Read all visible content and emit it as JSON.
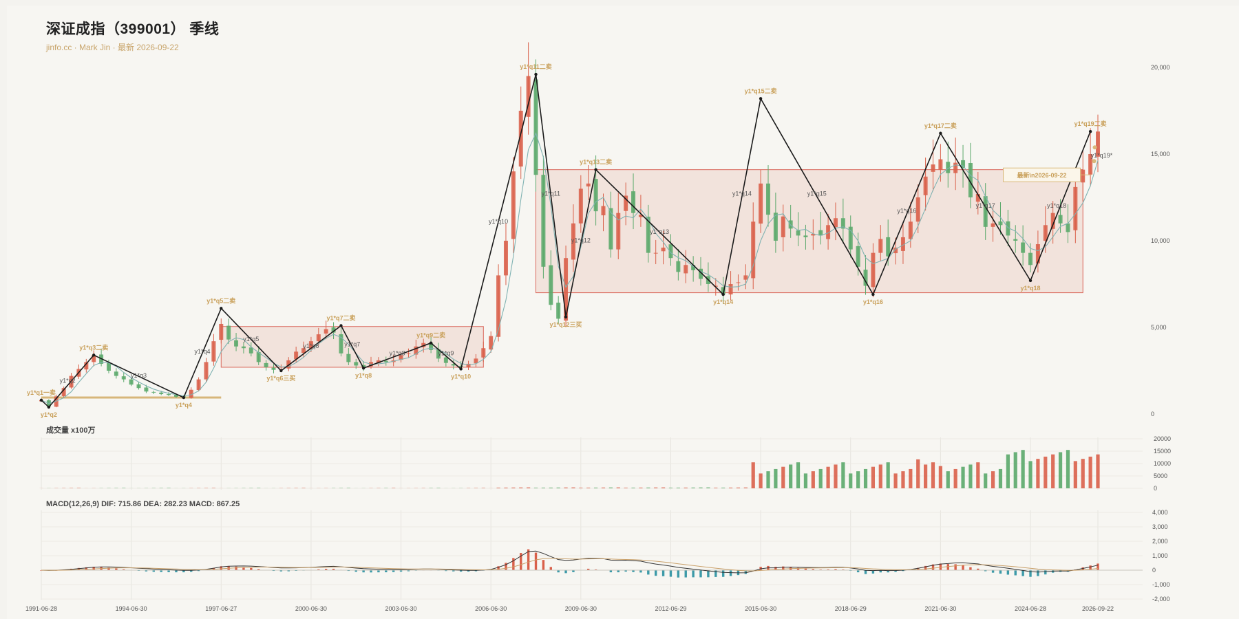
{
  "header": {
    "title": "深证成指（399001） 季线",
    "subtitle": "jinfo.cc · Mark Jin · 最新 2026-09-22"
  },
  "chart_data": {
    "type": "candlestick",
    "price_axis": {
      "ticks": [
        0,
        5000,
        10000,
        15000,
        20000
      ],
      "tick_labels": [
        "0",
        "5,000",
        "10,000",
        "15,000",
        "20,000"
      ],
      "ylim": [
        0,
        20000
      ]
    },
    "volume_panel": {
      "title": "成交量 x100万",
      "ticks": [
        0,
        5000,
        10000,
        15000,
        20000
      ],
      "tick_labels": [
        "0",
        "5000",
        "10000",
        "15000",
        "20000"
      ]
    },
    "macd_panel": {
      "title": "MACD(12,26,9) DIF: 715.86 DEA: 282.23 MACD: 867.25",
      "ticks": [
        -2000,
        -1000,
        0,
        1000,
        2000,
        3000,
        4000
      ],
      "tick_labels": [
        "-2,000",
        "-1,000",
        "0",
        "1,000",
        "2,000",
        "3,000",
        "4,000"
      ]
    },
    "x_tick_labels": [
      "1991-06-28",
      "1994-06-30",
      "1997-06-27",
      "2000-06-30",
      "2003-06-30",
      "2006-06-30",
      "2009-06-30",
      "2012-06-29",
      "2015-06-30",
      "2018-06-29",
      "2021-06-30",
      "2024-06-28",
      "2026-09-22"
    ],
    "x_tick_quarter_index": [
      0,
      12,
      24,
      36,
      48,
      60,
      72,
      84,
      96,
      108,
      120,
      132,
      141
    ],
    "pivots": [
      {
        "q": 0,
        "price": 800,
        "label": "y1*q1一卖",
        "gold": true,
        "pos": "above"
      },
      {
        "q": 1,
        "price": 400,
        "label": "y1*q2",
        "gold": true,
        "pos": "below"
      },
      {
        "q": 7,
        "price": 3400,
        "label": "y1*q3二卖",
        "gold": true,
        "pos": "above"
      },
      {
        "q": 19,
        "price": 950,
        "label": "y1*q4",
        "gold": true,
        "pos": "below"
      },
      {
        "q": 24,
        "price": 6100,
        "label": "y1*q5二卖",
        "gold": true,
        "pos": "above"
      },
      {
        "q": 32,
        "price": 2500,
        "label": "y1*q6三买",
        "gold": true,
        "pos": "below"
      },
      {
        "q": 40,
        "price": 5100,
        "label": "y1*q7二卖",
        "gold": true,
        "pos": "above"
      },
      {
        "q": 43,
        "price": 2650,
        "label": "y1*q8",
        "gold": true,
        "pos": "below"
      },
      {
        "q": 52,
        "price": 4100,
        "label": "y1*q9二卖",
        "gold": true,
        "pos": "above"
      },
      {
        "q": 56,
        "price": 2600,
        "label": "y1*q10",
        "gold": true,
        "pos": "below"
      },
      {
        "q": 66,
        "price": 19600,
        "label": "y1*q11二卖",
        "gold": true,
        "pos": "above"
      },
      {
        "q": 70,
        "price": 5600,
        "label": "y1*q12三买",
        "gold": true,
        "pos": "below"
      },
      {
        "q": 74,
        "price": 14100,
        "label": "y1*q13二卖",
        "gold": true,
        "pos": "above"
      },
      {
        "q": 91,
        "price": 6900,
        "label": "y1*q14",
        "gold": true,
        "pos": "below"
      },
      {
        "q": 96,
        "price": 18200,
        "label": "y1*q15二卖",
        "gold": true,
        "pos": "above"
      },
      {
        "q": 111,
        "price": 6900,
        "label": "y1*q16",
        "gold": true,
        "pos": "below"
      },
      {
        "q": 120,
        "price": 16200,
        "label": "y1*q17二卖",
        "gold": true,
        "pos": "above"
      },
      {
        "q": 132,
        "price": 7700,
        "label": "y1*q18",
        "gold": true,
        "pos": "below"
      },
      {
        "q": 140,
        "price": 16300,
        "label": "y1*q19二卖",
        "gold": true,
        "pos": "above"
      }
    ],
    "segment_labels": [
      {
        "q": 3.5,
        "price": 1800,
        "label": "y1*q2"
      },
      {
        "q": 13,
        "price": 2100,
        "label": "y1*q3"
      },
      {
        "q": 21.5,
        "price": 3500,
        "label": "y1*q4"
      },
      {
        "q": 28,
        "price": 4200,
        "label": "y1*q5"
      },
      {
        "q": 36,
        "price": 3800,
        "label": "y1*q6"
      },
      {
        "q": 41.5,
        "price": 3900,
        "label": "y1*q7"
      },
      {
        "q": 47.5,
        "price": 3400,
        "label": "y1*q8"
      },
      {
        "q": 54,
        "price": 3400,
        "label": "y1*q9"
      },
      {
        "q": 61,
        "price": 11000,
        "label": "y1*q10"
      },
      {
        "q": 68,
        "price": 12600,
        "label": "y1*q11"
      },
      {
        "q": 72,
        "price": 9900,
        "label": "y1*q12"
      },
      {
        "q": 82.5,
        "price": 10400,
        "label": "y1*q13"
      },
      {
        "q": 93.5,
        "price": 12600,
        "label": "y1*q14"
      },
      {
        "q": 103.5,
        "price": 12600,
        "label": "y1*q15"
      },
      {
        "q": 115.5,
        "price": 11600,
        "label": "y1*q16"
      },
      {
        "q": 126,
        "price": 11900,
        "label": "y1*q17"
      },
      {
        "q": 135.5,
        "price": 11900,
        "label": "y1*q18"
      },
      {
        "q": 141.5,
        "price": 14800,
        "label": "y1*q19*"
      }
    ],
    "zones": [
      {
        "q0": 24,
        "q1": 59,
        "low": 2700,
        "high": 5050
      },
      {
        "q0": 66,
        "q1": 139,
        "low": 7000,
        "high": 14100
      }
    ],
    "support_line": {
      "q0": 0,
      "q1": 24,
      "price": 950
    },
    "latest_marker": {
      "q": 140.5,
      "price": 13800,
      "label": "最新\\n2026-09-22"
    },
    "closes": [
      800,
      420,
      1020,
      1500,
      2200,
      2600,
      3000,
      3400,
      2900,
      2500,
      2200,
      2000,
      1700,
      1500,
      1300,
      1250,
      1150,
      1100,
      1000,
      950,
      1400,
      2000,
      3000,
      4200,
      5200,
      4300,
      3900,
      3800,
      3500,
      3000,
      2700,
      2550,
      2600,
      3100,
      3600,
      3800,
      4200,
      4600,
      4900,
      4700,
      3500,
      3000,
      2800,
      2700,
      3000,
      3100,
      3000,
      3100,
      3400,
      3500,
      3900,
      4100,
      3700,
      3200,
      2950,
      2800,
      2700,
      2900,
      3200,
      3800,
      4500,
      8000,
      10000,
      14000,
      17500,
      19500,
      13800,
      8500,
      6300,
      5500,
      9000,
      11000,
      13000,
      13300,
      11700,
      12000,
      9500,
      11600,
      12600,
      11600,
      11500,
      9300,
      9300,
      9600,
      9000,
      8200,
      8600,
      8300,
      7800,
      7500,
      7400,
      6900,
      7500,
      7600,
      8000,
      11100,
      13300,
      11500,
      10000,
      11400,
      10700,
      10300,
      10200,
      10400,
      10300,
      10900,
      11300,
      10700,
      9500,
      8500,
      7400,
      9300,
      10100,
      9100,
      9600,
      10200,
      11100,
      12500,
      13700,
      14400,
      14700,
      13900,
      14500,
      14200,
      12500,
      12700,
      10800,
      11000,
      10900,
      10300,
      10000,
      9300,
      8600,
      9800,
      10900,
      11600,
      11000,
      10500,
      13100,
      14100,
      15000,
      16300
    ]
  }
}
